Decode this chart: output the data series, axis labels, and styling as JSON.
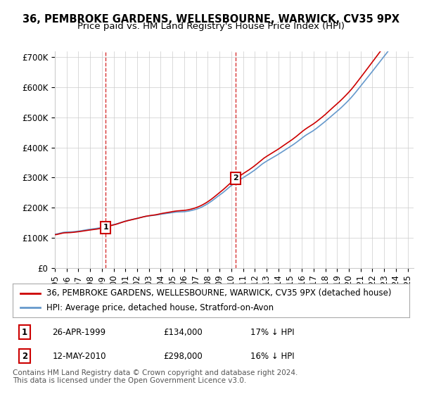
{
  "title": "36, PEMBROKE GARDENS, WELLESBOURNE, WARWICK, CV35 9PX",
  "subtitle": "Price paid vs. HM Land Registry's House Price Index (HPI)",
  "legend_line1": "36, PEMBROKE GARDENS, WELLESBOURNE, WARWICK, CV35 9PX (detached house)",
  "legend_line2": "HPI: Average price, detached house, Stratford-on-Avon",
  "footnote1": "Contains HM Land Registry data © Crown copyright and database right 2024.",
  "footnote2": "This data is licensed under the Open Government Licence v3.0.",
  "marker1_label": "1",
  "marker1_date": "26-APR-1999",
  "marker1_price": "£134,000",
  "marker1_hpi": "17% ↓ HPI",
  "marker1_x": 1999.32,
  "marker1_y": 134000,
  "marker2_label": "2",
  "marker2_date": "12-MAY-2010",
  "marker2_price": "£298,000",
  "marker2_hpi": "16% ↓ HPI",
  "marker2_x": 2010.37,
  "marker2_y": 298000,
  "ylim": [
    0,
    720000
  ],
  "xlim": [
    1995.0,
    2025.5
  ],
  "yticks": [
    0,
    100000,
    200000,
    300000,
    400000,
    500000,
    600000,
    700000
  ],
  "ytick_labels": [
    "£0",
    "£100K",
    "£200K",
    "£300K",
    "£400K",
    "£500K",
    "£600K",
    "£700K"
  ],
  "bg_color": "#ffffff",
  "plot_bg_color": "#ffffff",
  "grid_color": "#cccccc",
  "red_line_color": "#cc0000",
  "blue_line_color": "#6699cc",
  "dashed_line_color": "#cc0000",
  "title_fontsize": 10.5,
  "subtitle_fontsize": 9.5,
  "tick_fontsize": 8.5,
  "legend_fontsize": 8.5,
  "table_fontsize": 8.5,
  "footnote_fontsize": 7.5
}
